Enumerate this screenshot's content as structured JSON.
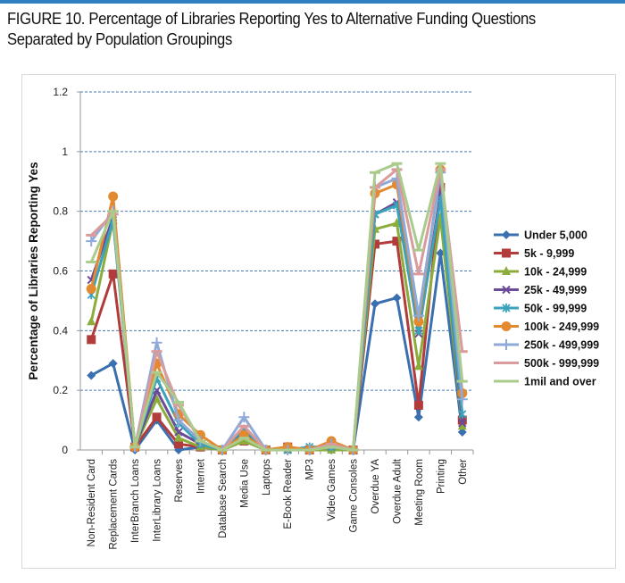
{
  "title_line1": "FIGURE 10. Percentage of Libraries Reporting Yes to Alternative Funding Questions",
  "title_line2": "Separated by Population Groupings",
  "accent_color": "#2f7fc1",
  "chart_data": {
    "type": "line",
    "title": "",
    "xlabel": "",
    "ylabel": "Percentage of Libraries Reporting Yes",
    "ylim": [
      0,
      1.2
    ],
    "yticks": [
      "0",
      "0.2",
      "0.4",
      "0.6",
      "0.8",
      "1",
      "1.2"
    ],
    "grid": "horizontal dashed",
    "legend_position": "right",
    "categories": [
      "Non-Resident Card",
      "Replacement Cards",
      "InterBranch Loans",
      "InterLibrary Loans",
      "Reserves",
      "Internet",
      "Database Search",
      "Media Use",
      "Laptops",
      "E-Book Reader",
      "MP3",
      "Video Games",
      "Game Consoles",
      "Overdue YA",
      "Overdue Adult",
      "Meeting Room",
      "Printing",
      "Other"
    ],
    "series": [
      {
        "name": "Under 5,000",
        "color": "#3a6fb0",
        "marker": "diamond",
        "values": [
          0.25,
          0.29,
          0,
          0.1,
          0,
          0.01,
          0,
          0.07,
          0,
          0,
          0,
          0,
          0,
          0.49,
          0.51,
          0.11,
          0.66,
          0.06
        ]
      },
      {
        "name": "5k - 9,999",
        "color": "#b23b3b",
        "marker": "square",
        "values": [
          0.37,
          0.59,
          0.01,
          0.11,
          0.02,
          0.01,
          0,
          0.03,
          0,
          0.01,
          0,
          0.01,
          0,
          0.69,
          0.7,
          0.15,
          0.88,
          0.1
        ]
      },
      {
        "name": "10k - 24,999",
        "color": "#8cac3c",
        "marker": "triangle",
        "values": [
          0.43,
          0.77,
          0.01,
          0.17,
          0.04,
          0.01,
          0,
          0.03,
          0,
          0,
          0,
          0,
          0,
          0.74,
          0.76,
          0.28,
          0.78,
          0.08
        ]
      },
      {
        "name": "25k - 49,999",
        "color": "#6a4b97",
        "marker": "x",
        "values": [
          0.57,
          0.78,
          0.01,
          0.2,
          0.06,
          0.02,
          0,
          0.06,
          0,
          0,
          0,
          0.01,
          0,
          0.79,
          0.83,
          0.39,
          0.86,
          0.09
        ]
      },
      {
        "name": "50k - 99,999",
        "color": "#3aa3bb",
        "marker": "star",
        "values": [
          0.52,
          0.77,
          0.01,
          0.24,
          0.09,
          0.02,
          0,
          0.07,
          0,
          0,
          0.01,
          0.01,
          0,
          0.79,
          0.82,
          0.4,
          0.84,
          0.12
        ]
      },
      {
        "name": "100k - 249,999",
        "color": "#e3892f",
        "marker": "circle",
        "values": [
          0.54,
          0.85,
          0.01,
          0.29,
          0.12,
          0.05,
          0,
          0.05,
          0,
          0.01,
          0,
          0.03,
          0,
          0.86,
          0.89,
          0.43,
          0.94,
          0.19
        ]
      },
      {
        "name": "250k - 499,999",
        "color": "#8fa9d9",
        "marker": "plus",
        "values": [
          0.7,
          0.8,
          0.01,
          0.36,
          0.1,
          0.03,
          0,
          0.11,
          0,
          0,
          0,
          0.02,
          0,
          0.88,
          0.91,
          0.45,
          0.93,
          0.17
        ]
      },
      {
        "name": "500k - 999,999",
        "color": "#d99b9b",
        "marker": "dash",
        "values": [
          0.72,
          0.79,
          0.01,
          0.33,
          0.15,
          0.03,
          0,
          0.08,
          0,
          0,
          0,
          0.02,
          0,
          0.88,
          0.94,
          0.59,
          0.94,
          0.33
        ]
      },
      {
        "name": "1mil and over",
        "color": "#a9cb8c",
        "marker": "dash",
        "values": [
          0.63,
          0.8,
          0.01,
          0.26,
          0.16,
          0.03,
          0,
          0.04,
          0,
          0,
          0,
          0.01,
          0,
          0.93,
          0.96,
          0.67,
          0.96,
          0.23
        ]
      }
    ]
  }
}
